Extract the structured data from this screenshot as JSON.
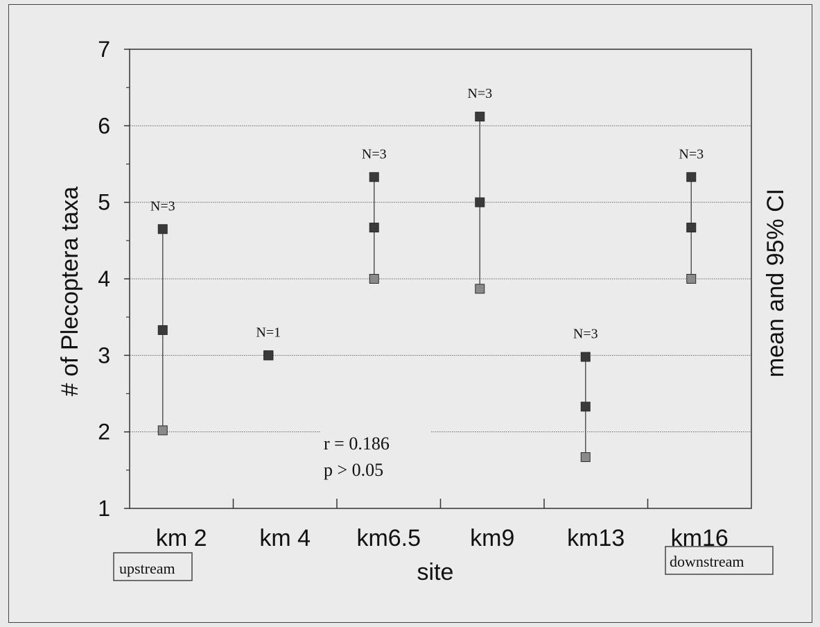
{
  "chart_data": {
    "type": "scatter",
    "xlabel": "site",
    "ylabel": "# of Plecoptera taxa",
    "ylabel_right": "mean and 95% CI",
    "categories": [
      "km 2",
      "km 4",
      "km6.5",
      "km9",
      "km13",
      "km16"
    ],
    "ylim": [
      1,
      7
    ],
    "yticks": [
      1,
      2,
      3,
      4,
      5,
      6,
      7
    ],
    "gridlines": [
      2,
      3,
      4,
      5,
      6
    ],
    "points": [
      {
        "site": "km 2",
        "mean": 3.33,
        "lower": 2.02,
        "upper": 4.65,
        "n_label": "N=3"
      },
      {
        "site": "km 4",
        "mean": 3.0,
        "lower": 3.0,
        "upper": 3.0,
        "n_label": "N=1"
      },
      {
        "site": "km6.5",
        "mean": 4.67,
        "lower": 4.0,
        "upper": 5.33,
        "n_label": "N=3"
      },
      {
        "site": "km9",
        "mean": 5.0,
        "lower": 3.87,
        "upper": 6.12,
        "n_label": "N=3"
      },
      {
        "site": "km13",
        "mean": 2.33,
        "lower": 1.67,
        "upper": 2.98,
        "n_label": "N=3"
      },
      {
        "site": "km16",
        "mean": 4.67,
        "lower": 4.0,
        "upper": 5.33,
        "n_label": "N=3"
      }
    ],
    "annotations": {
      "r": "r = 0.186",
      "p": "p > 0.05",
      "upstream": "upstream",
      "downstream": "downstream"
    },
    "grid": true,
    "colors": {
      "marker": "#3a3a3a",
      "marker_light": "#8a8a8a",
      "line": "#555555"
    }
  }
}
